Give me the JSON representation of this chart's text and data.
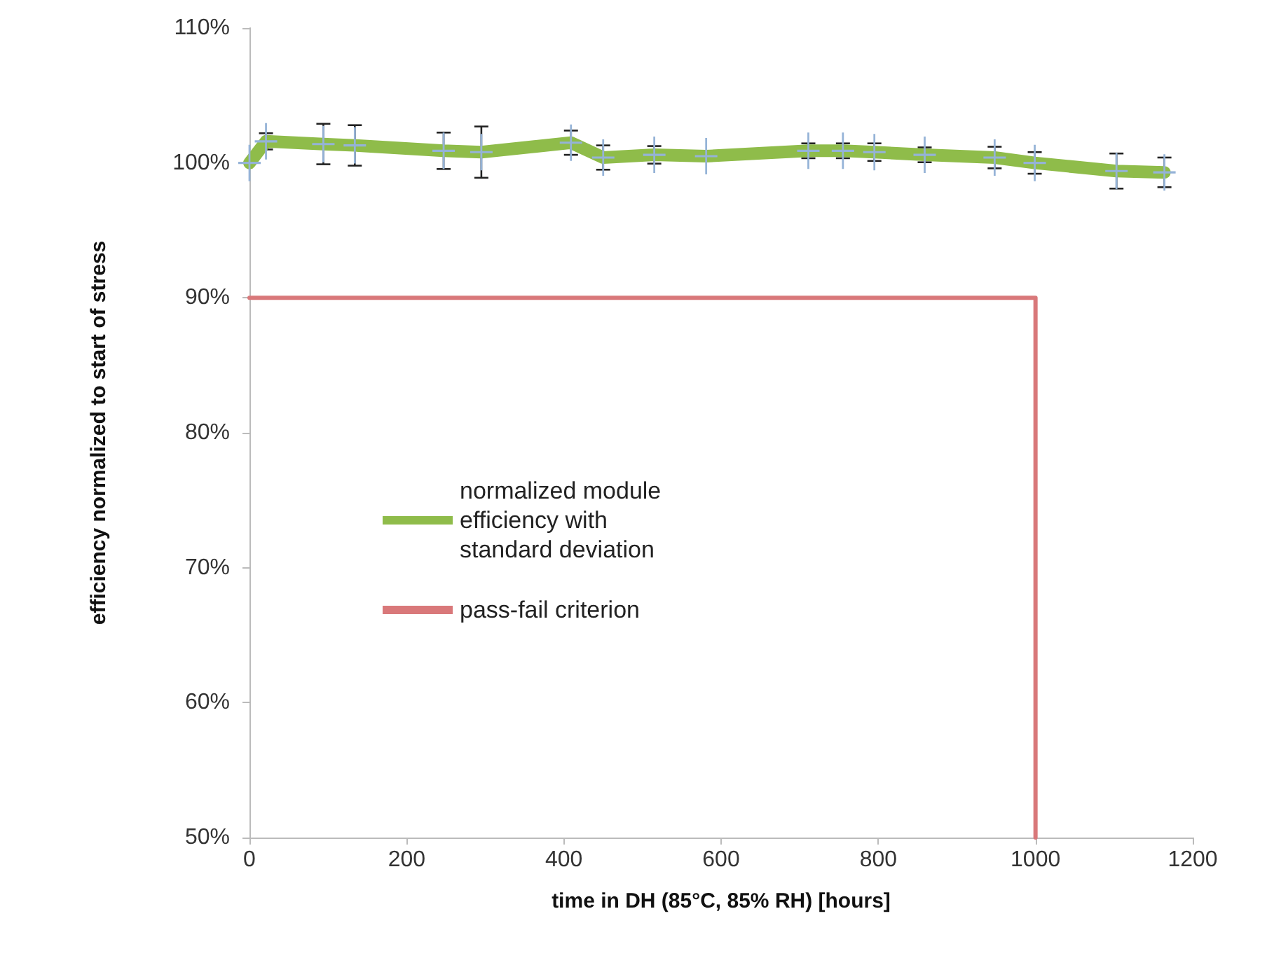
{
  "chart_data": {
    "type": "line",
    "xlabel": "time in DH (85°C, 85% RH) [hours]",
    "ylabel": "efficiency normalized to start of stress",
    "xlim": [
      0,
      1200
    ],
    "xticks": [
      0,
      200,
      400,
      600,
      800,
      1000,
      1200
    ],
    "ylim": [
      50,
      110
    ],
    "yticks": [
      {
        "value": 50,
        "label": "50%"
      },
      {
        "value": 60,
        "label": "60%"
      },
      {
        "value": 70,
        "label": "70%"
      },
      {
        "value": 80,
        "label": "80%"
      },
      {
        "value": 90,
        "label": "90%"
      },
      {
        "value": 100,
        "label": "100%"
      },
      {
        "value": 110,
        "label": "110%"
      }
    ],
    "grid": false,
    "legend": "left",
    "marker": "cross",
    "series": [
      {
        "name": "normalized module efficiency with standard deviation",
        "color": "#8fbc4a",
        "x": [
          0,
          21,
          94,
          134,
          247,
          295,
          409,
          450,
          515,
          581,
          711,
          755,
          795,
          859,
          948,
          999,
          1103,
          1164
        ],
        "values": [
          100.0,
          101.6,
          101.4,
          101.3,
          100.9,
          100.8,
          101.5,
          100.4,
          100.6,
          100.5,
          100.9,
          100.9,
          100.8,
          100.6,
          100.4,
          100.0,
          99.4,
          99.3
        ],
        "errors": [
          null,
          0.6,
          1.5,
          1.5,
          1.35,
          1.9,
          0.9,
          0.9,
          0.65,
          null,
          0.55,
          0.55,
          0.65,
          0.55,
          0.8,
          0.8,
          1.3,
          1.1
        ]
      },
      {
        "name": "pass-fail criterion",
        "color": "#d9787a",
        "type": "line",
        "marker": "none",
        "x": [
          0,
          1000,
          1000
        ],
        "values": [
          90,
          90,
          50
        ]
      }
    ]
  }
}
